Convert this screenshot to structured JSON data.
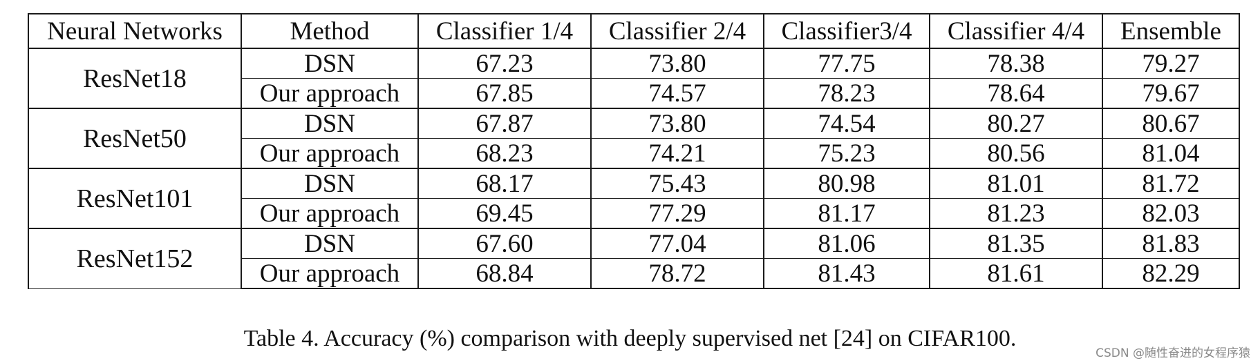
{
  "table": {
    "headers": [
      "Neural Networks",
      "Method",
      "Classifier 1/4",
      "Classifier 2/4",
      "Classifier3/4",
      "Classifier 4/4",
      "Ensemble"
    ],
    "groups": [
      {
        "network": "ResNet18",
        "rows": [
          {
            "method": "DSN",
            "values": [
              "67.23",
              "73.80",
              "77.75",
              "78.38",
              "79.27"
            ]
          },
          {
            "method": "Our approach",
            "values": [
              "67.85",
              "74.57",
              "78.23",
              "78.64",
              "79.67"
            ]
          }
        ]
      },
      {
        "network": "ResNet50",
        "rows": [
          {
            "method": "DSN",
            "values": [
              "67.87",
              "73.80",
              "74.54",
              "80.27",
              "80.67"
            ]
          },
          {
            "method": "Our approach",
            "values": [
              "68.23",
              "74.21",
              "75.23",
              "80.56",
              "81.04"
            ]
          }
        ]
      },
      {
        "network": "ResNet101",
        "rows": [
          {
            "method": "DSN",
            "values": [
              "68.17",
              "75.43",
              "80.98",
              "81.01",
              "81.72"
            ]
          },
          {
            "method": "Our approach",
            "values": [
              "69.45",
              "77.29",
              "81.17",
              "81.23",
              "82.03"
            ]
          }
        ]
      },
      {
        "network": "ResNet152",
        "rows": [
          {
            "method": "DSN",
            "values": [
              "67.60",
              "77.04",
              "81.06",
              "81.35",
              "81.83"
            ]
          },
          {
            "method": "Our approach",
            "values": [
              "68.84",
              "78.72",
              "81.43",
              "81.61",
              "82.29"
            ]
          }
        ]
      }
    ]
  },
  "caption": "Table 4. Accuracy (%) comparison with deeply supervised net [24] on CIFAR100.",
  "watermark": "CSDN @随性奋进的女程序猿"
}
